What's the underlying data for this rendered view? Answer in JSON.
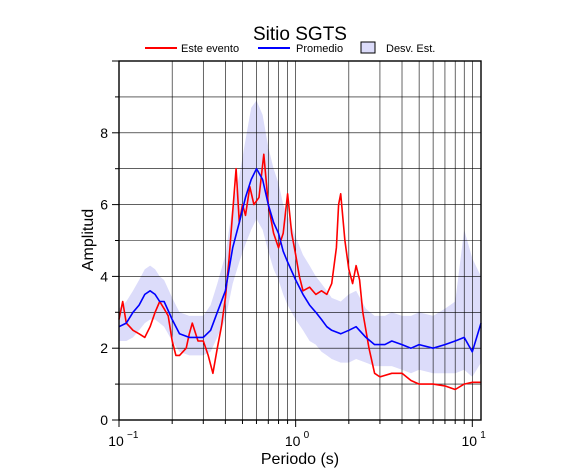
{
  "chart_data": {
    "type": "line",
    "title": "Sitio SGTS",
    "xlabel": "Periodo (s)",
    "ylabel": "Amplitud",
    "xscale": "log",
    "xlim": [
      0.1,
      11.2
    ],
    "ylim": [
      0,
      10
    ],
    "x_ticks": [
      {
        "value": 0.1,
        "base": "10",
        "exp": "−1"
      },
      {
        "value": 1,
        "base": "10",
        "exp": "0"
      },
      {
        "value": 10,
        "base": "10",
        "exp": "1"
      }
    ],
    "y_ticks": [
      {
        "value": 0,
        "label": "0"
      },
      {
        "value": 2,
        "label": "2"
      },
      {
        "value": 4,
        "label": "4"
      },
      {
        "value": 6,
        "label": "6"
      },
      {
        "value": 8,
        "label": "8"
      }
    ],
    "grid": true,
    "legend_position": "top-center",
    "legend": [
      {
        "label": "Este evento",
        "kind": "line",
        "color": "#ff0000"
      },
      {
        "label": "Promedio",
        "kind": "line",
        "color": "#0000ff"
      },
      {
        "label": "Desv. Est.",
        "kind": "band",
        "color": "#dcdcfa"
      }
    ],
    "series": [
      {
        "name": "Este evento",
        "color": "#ff0000",
        "points": [
          [
            0.1,
            2.8
          ],
          [
            0.105,
            3.3
          ],
          [
            0.11,
            2.7
          ],
          [
            0.115,
            2.6
          ],
          [
            0.12,
            2.5
          ],
          [
            0.13,
            2.4
          ],
          [
            0.14,
            2.3
          ],
          [
            0.15,
            2.6
          ],
          [
            0.16,
            3.0
          ],
          [
            0.17,
            3.3
          ],
          [
            0.18,
            3.1
          ],
          [
            0.19,
            2.9
          ],
          [
            0.2,
            2.2
          ],
          [
            0.21,
            1.8
          ],
          [
            0.22,
            1.8
          ],
          [
            0.24,
            2.0
          ],
          [
            0.25,
            2.4
          ],
          [
            0.26,
            2.7
          ],
          [
            0.28,
            2.2
          ],
          [
            0.3,
            2.2
          ],
          [
            0.32,
            1.8
          ],
          [
            0.34,
            1.3
          ],
          [
            0.36,
            2.0
          ],
          [
            0.38,
            2.6
          ],
          [
            0.4,
            3.4
          ],
          [
            0.42,
            4.5
          ],
          [
            0.44,
            5.8
          ],
          [
            0.46,
            7.0
          ],
          [
            0.48,
            5.5
          ],
          [
            0.5,
            6.0
          ],
          [
            0.52,
            5.7
          ],
          [
            0.55,
            6.5
          ],
          [
            0.58,
            6.0
          ],
          [
            0.62,
            6.2
          ],
          [
            0.66,
            7.4
          ],
          [
            0.7,
            6.0
          ],
          [
            0.75,
            5.2
          ],
          [
            0.8,
            4.8
          ],
          [
            0.85,
            5.2
          ],
          [
            0.9,
            6.3
          ],
          [
            0.95,
            5.2
          ],
          [
            1.0,
            4.6
          ],
          [
            1.05,
            4.0
          ],
          [
            1.1,
            3.6
          ],
          [
            1.2,
            3.7
          ],
          [
            1.3,
            3.5
          ],
          [
            1.4,
            3.6
          ],
          [
            1.5,
            3.5
          ],
          [
            1.6,
            3.8
          ],
          [
            1.7,
            4.8
          ],
          [
            1.75,
            6.0
          ],
          [
            1.8,
            6.3
          ],
          [
            1.9,
            5.0
          ],
          [
            2.0,
            4.2
          ],
          [
            2.1,
            3.8
          ],
          [
            2.2,
            4.3
          ],
          [
            2.3,
            3.9
          ],
          [
            2.4,
            3.0
          ],
          [
            2.6,
            2.0
          ],
          [
            2.8,
            1.3
          ],
          [
            3.0,
            1.2
          ],
          [
            3.5,
            1.3
          ],
          [
            4.0,
            1.3
          ],
          [
            4.5,
            1.1
          ],
          [
            5.0,
            1.0
          ],
          [
            6.0,
            1.0
          ],
          [
            7.0,
            0.95
          ],
          [
            8.0,
            0.85
          ],
          [
            9.0,
            1.0
          ],
          [
            10.0,
            1.05
          ],
          [
            11.2,
            1.05
          ]
        ]
      },
      {
        "name": "Promedio",
        "color": "#0000ff",
        "points": [
          [
            0.1,
            2.6
          ],
          [
            0.11,
            2.7
          ],
          [
            0.12,
            3.0
          ],
          [
            0.13,
            3.2
          ],
          [
            0.14,
            3.5
          ],
          [
            0.15,
            3.6
          ],
          [
            0.16,
            3.5
          ],
          [
            0.17,
            3.3
          ],
          [
            0.18,
            3.3
          ],
          [
            0.2,
            2.8
          ],
          [
            0.22,
            2.4
          ],
          [
            0.25,
            2.3
          ],
          [
            0.28,
            2.3
          ],
          [
            0.3,
            2.3
          ],
          [
            0.33,
            2.5
          ],
          [
            0.36,
            3.0
          ],
          [
            0.4,
            3.6
          ],
          [
            0.44,
            4.8
          ],
          [
            0.48,
            5.5
          ],
          [
            0.52,
            6.2
          ],
          [
            0.56,
            6.7
          ],
          [
            0.6,
            7.0
          ],
          [
            0.65,
            6.7
          ],
          [
            0.7,
            6.0
          ],
          [
            0.75,
            5.5
          ],
          [
            0.8,
            5.2
          ],
          [
            0.85,
            4.7
          ],
          [
            0.9,
            4.4
          ],
          [
            1.0,
            3.9
          ],
          [
            1.1,
            3.5
          ],
          [
            1.2,
            3.2
          ],
          [
            1.3,
            3.0
          ],
          [
            1.4,
            2.8
          ],
          [
            1.5,
            2.6
          ],
          [
            1.6,
            2.5
          ],
          [
            1.8,
            2.4
          ],
          [
            2.0,
            2.5
          ],
          [
            2.2,
            2.6
          ],
          [
            2.5,
            2.3
          ],
          [
            2.8,
            2.1
          ],
          [
            3.2,
            2.1
          ],
          [
            3.5,
            2.2
          ],
          [
            4.0,
            2.1
          ],
          [
            4.5,
            2.0
          ],
          [
            5.0,
            2.1
          ],
          [
            6.0,
            2.0
          ],
          [
            7.0,
            2.1
          ],
          [
            8.0,
            2.2
          ],
          [
            9.0,
            2.3
          ],
          [
            10.0,
            1.9
          ],
          [
            11.2,
            2.7
          ]
        ]
      }
    ],
    "band": {
      "name": "Desv. Est.",
      "color": "#dcdcfa",
      "points": [
        [
          0.1,
          2.2,
          3.1
        ],
        [
          0.11,
          2.2,
          3.3
        ],
        [
          0.12,
          2.3,
          3.6
        ],
        [
          0.13,
          2.5,
          3.9
        ],
        [
          0.14,
          2.7,
          4.2
        ],
        [
          0.15,
          2.8,
          4.3
        ],
        [
          0.16,
          2.8,
          4.2
        ],
        [
          0.17,
          2.7,
          4.0
        ],
        [
          0.18,
          2.6,
          3.9
        ],
        [
          0.2,
          2.2,
          3.4
        ],
        [
          0.22,
          1.9,
          3.0
        ],
        [
          0.25,
          1.8,
          2.9
        ],
        [
          0.28,
          1.8,
          2.9
        ],
        [
          0.3,
          1.8,
          2.9
        ],
        [
          0.33,
          1.9,
          3.2
        ],
        [
          0.36,
          2.3,
          3.8
        ],
        [
          0.4,
          2.8,
          4.6
        ],
        [
          0.44,
          3.8,
          6.0
        ],
        [
          0.48,
          4.4,
          6.8
        ],
        [
          0.52,
          4.9,
          7.8
        ],
        [
          0.56,
          5.3,
          8.7
        ],
        [
          0.6,
          5.6,
          8.9
        ],
        [
          0.65,
          5.3,
          8.5
        ],
        [
          0.7,
          4.7,
          7.6
        ],
        [
          0.75,
          4.2,
          7.0
        ],
        [
          0.8,
          3.9,
          6.6
        ],
        [
          0.85,
          3.5,
          6.0
        ],
        [
          0.9,
          3.2,
          5.7
        ],
        [
          1.0,
          2.8,
          5.1
        ],
        [
          1.1,
          2.5,
          4.6
        ],
        [
          1.2,
          2.2,
          4.3
        ],
        [
          1.3,
          2.1,
          4.0
        ],
        [
          1.4,
          1.9,
          3.8
        ],
        [
          1.5,
          1.8,
          3.6
        ],
        [
          1.6,
          1.7,
          3.4
        ],
        [
          1.8,
          1.6,
          3.3
        ],
        [
          2.0,
          1.6,
          3.5
        ],
        [
          2.2,
          1.7,
          3.6
        ],
        [
          2.5,
          1.6,
          3.1
        ],
        [
          2.8,
          1.5,
          2.9
        ],
        [
          3.2,
          1.5,
          2.9
        ],
        [
          3.5,
          1.5,
          3.0
        ],
        [
          4.0,
          1.4,
          2.9
        ],
        [
          4.5,
          1.3,
          2.9
        ],
        [
          5.0,
          1.4,
          3.0
        ],
        [
          6.0,
          1.3,
          2.9
        ],
        [
          7.0,
          1.3,
          3.1
        ],
        [
          8.0,
          1.3,
          3.3
        ],
        [
          9.0,
          1.4,
          5.3
        ],
        [
          10.0,
          1.2,
          4.5
        ],
        [
          11.2,
          1.6,
          4.0
        ]
      ]
    }
  }
}
